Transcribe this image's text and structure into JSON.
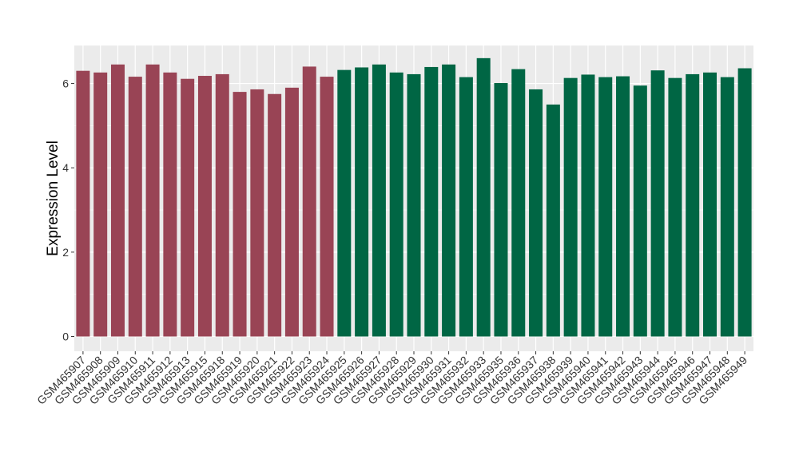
{
  "chart_data": {
    "type": "bar",
    "ylabel": "Expression Level",
    "xlabel": "",
    "ylim": [
      -0.35,
      6.9
    ],
    "yticks": [
      0,
      2,
      4,
      6
    ],
    "grid": true,
    "categories": [
      "GSM465907",
      "GSM465908",
      "GSM465909",
      "GSM465910",
      "GSM465911",
      "GSM465912",
      "GSM465913",
      "GSM465915",
      "GSM465918",
      "GSM465919",
      "GSM465920",
      "GSM465921",
      "GSM465922",
      "GSM465923",
      "GSM465924",
      "GSM465925",
      "GSM465926",
      "GSM465927",
      "GSM465928",
      "GSM465929",
      "GSM465930",
      "GSM465931",
      "GSM465932",
      "GSM465933",
      "GSM465935",
      "GSM465936",
      "GSM465937",
      "GSM465938",
      "GSM465939",
      "GSM465940",
      "GSM465941",
      "GSM465942",
      "GSM465943",
      "GSM465944",
      "GSM465945",
      "GSM465946",
      "GSM465947",
      "GSM465948",
      "GSM465949"
    ],
    "values": [
      6.3,
      6.26,
      6.45,
      6.16,
      6.45,
      6.26,
      6.11,
      6.18,
      6.22,
      5.8,
      5.86,
      5.75,
      5.9,
      6.4,
      6.16,
      6.32,
      6.38,
      6.45,
      6.26,
      6.22,
      6.39,
      6.45,
      6.15,
      6.6,
      6.01,
      6.34,
      5.86,
      5.5,
      6.13,
      6.21,
      6.15,
      6.17,
      5.95,
      6.31,
      6.13,
      6.22,
      6.26,
      6.15,
      6.36
    ],
    "groups": [
      0,
      0,
      0,
      0,
      0,
      0,
      0,
      0,
      0,
      0,
      0,
      0,
      0,
      0,
      0,
      1,
      1,
      1,
      1,
      1,
      1,
      1,
      1,
      1,
      1,
      1,
      1,
      1,
      1,
      1,
      1,
      1,
      1,
      1,
      1,
      1,
      1,
      1,
      1
    ],
    "group_colors": [
      "#994455",
      "#006644"
    ],
    "panel_background": "#ebebeb",
    "grid_color": "#ffffff"
  }
}
